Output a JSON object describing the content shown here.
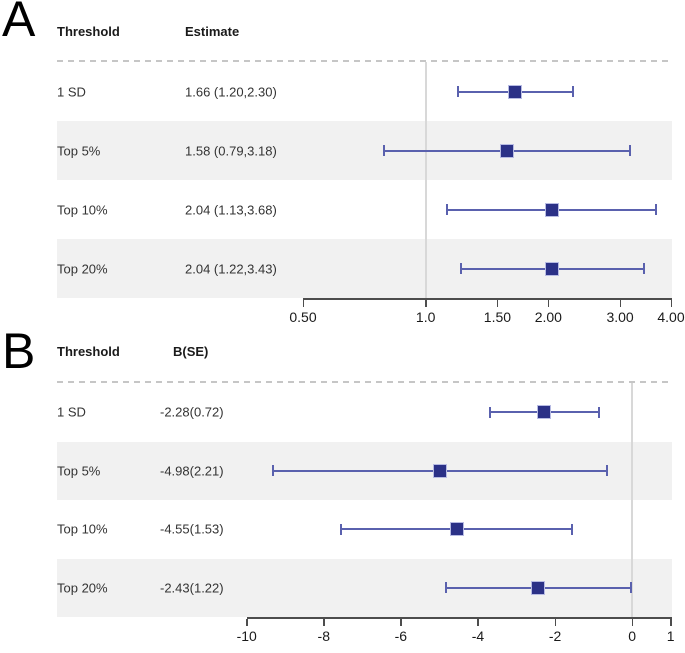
{
  "colors": {
    "marker": "#2b3187",
    "marker_border": "#b7bbe3",
    "ci_line": "#5a61ae",
    "band": "#f1f1f1",
    "ref_line": "#d8d8d8",
    "dashed_line": "#c6c6c6",
    "axis": "#4d4d4d",
    "tick_label": "#1a1a1a",
    "row_text": "#333333"
  },
  "chart_data": [
    {
      "type": "forest",
      "panel_label": "A",
      "columns": [
        "Threshold",
        "Estimate"
      ],
      "scale": "log",
      "xlim": [
        0.5,
        4.0
      ],
      "x_ticks": [
        0.5,
        1.0,
        1.5,
        2.0,
        3.0,
        4.0
      ],
      "x_tick_labels": [
        "0.50",
        "1.0",
        "1.50",
        "2.00",
        "3.00",
        "4.00"
      ],
      "ref_line": 1.0,
      "grid": "off",
      "rows": [
        {
          "label": "1 SD",
          "value_text": "1.66 (1.20,2.30)",
          "estimate": 1.66,
          "ci_low": 1.2,
          "ci_high": 2.3
        },
        {
          "label": "Top 5%",
          "value_text": "1.58 (0.79,3.18)",
          "estimate": 1.58,
          "ci_low": 0.79,
          "ci_high": 3.18
        },
        {
          "label": "Top 10%",
          "value_text": "2.04 (1.13,3.68)",
          "estimate": 2.04,
          "ci_low": 1.13,
          "ci_high": 3.68
        },
        {
          "label": "Top 20%",
          "value_text": "2.04 (1.22,3.43)",
          "estimate": 2.04,
          "ci_low": 1.22,
          "ci_high": 3.43
        }
      ]
    },
    {
      "type": "forest",
      "panel_label": "B",
      "columns": [
        "Threshold",
        "B(SE)"
      ],
      "scale": "linear",
      "xlim": [
        -10,
        1
      ],
      "x_ticks": [
        -10,
        -8,
        -6,
        -4,
        -2,
        0,
        1
      ],
      "x_tick_labels": [
        "-10",
        "-8",
        "-6",
        "-4",
        "-2",
        "0",
        "1"
      ],
      "ref_line": 0,
      "grid": "off",
      "rows": [
        {
          "label": "1 SD",
          "value_text": "-2.28(0.72)",
          "estimate": -2.28,
          "ci_low": -3.69,
          "ci_high": -0.87
        },
        {
          "label": "Top 5%",
          "value_text": "-4.98(2.21)",
          "estimate": -4.98,
          "ci_low": -9.31,
          "ci_high": -0.65
        },
        {
          "label": "Top 10%",
          "value_text": "-4.55(1.53)",
          "estimate": -4.55,
          "ci_low": -7.55,
          "ci_high": -1.55
        },
        {
          "label": "Top 20%",
          "value_text": "-2.43(1.22)",
          "estimate": -2.43,
          "ci_low": -4.82,
          "ci_high": -0.04
        }
      ]
    }
  ]
}
